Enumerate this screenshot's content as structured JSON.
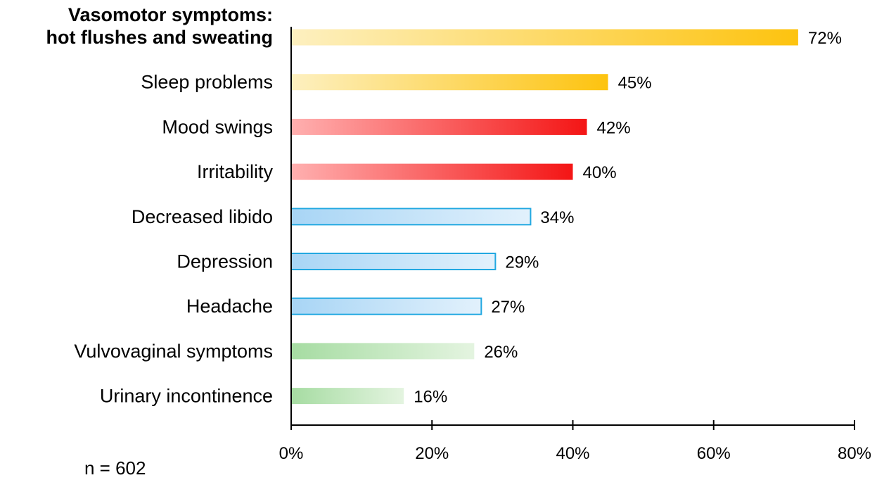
{
  "chart_data": {
    "type": "bar",
    "orientation": "horizontal",
    "categories": [
      "Vasomotor symptoms:\nhot flushes and sweating",
      "Sleep problems",
      "Mood swings",
      "Irritability",
      "Decreased libido",
      "Depression",
      "Headache",
      "Vulvovaginal symptoms",
      "Urinary incontinence"
    ],
    "values": [
      72,
      45,
      42,
      40,
      34,
      29,
      27,
      26,
      16
    ],
    "value_labels": [
      "72%",
      "45%",
      "42%",
      "40%",
      "34%",
      "29%",
      "27%",
      "26%",
      "16%"
    ],
    "bar_styles": [
      "yellow",
      "yellow",
      "red",
      "red",
      "blue",
      "blue",
      "blue",
      "green",
      "green"
    ],
    "xlim": [
      0,
      80
    ],
    "x_ticks": [
      0,
      20,
      40,
      60,
      80
    ],
    "x_tick_labels": [
      "0%",
      "20%",
      "40%",
      "60%",
      "80%"
    ],
    "grid": false,
    "footnote": "n = 602",
    "colors": {
      "yellow_light": "#fdf0c0",
      "yellow_dark": "#fdc30f",
      "red_light": "#ffb0b0",
      "red_dark": "#f41515",
      "blue_light": "#e2f1fc",
      "blue_dark": "#a8d5f5",
      "blue_border": "#22a8e1",
      "green_light": "#e4f4e0",
      "green_dark": "#a6dca2"
    }
  }
}
